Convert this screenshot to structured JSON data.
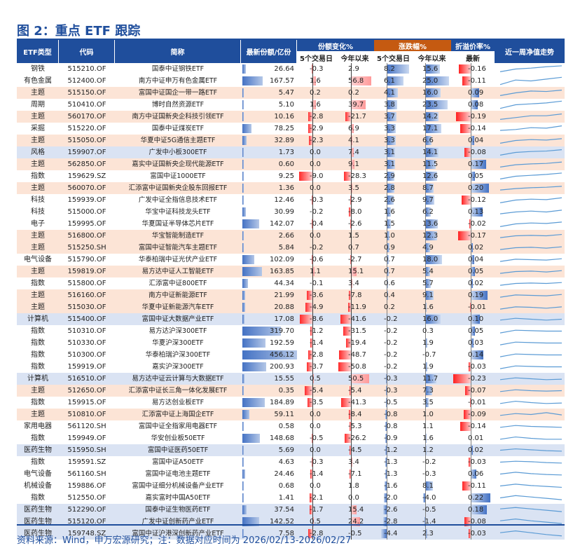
{
  "title": "图 2：重点 ETF 跟踪",
  "source": "资料来源：Wind，申万宏源研究；注：数据对应时间为 2026/02/13-2026/02/27",
  "headers": {
    "type": "ETF类型",
    "code": "代码",
    "name": "简称",
    "share": "最新份额/亿份",
    "share_change": "份额变化%",
    "price_change": "涨跌幅%",
    "premium": "折溢价率%",
    "nav_trend": "近一周净值走势",
    "sub_5d": "5个交易日",
    "sub_ytd": "今年以来",
    "sub_5d_b": "5个交易日",
    "sub_ytd_b": "今年以来",
    "sub_latest": "最新"
  },
  "colors": {
    "header_blue": "#1f4e9c",
    "header_orange": "#c55a11",
    "row_orange": "#fce4d6",
    "row_blue": "#dae3f3",
    "row_white": "#ffffff",
    "bar_red": "#ff0000",
    "bar_blue": "#4472c4",
    "spark_blue": "#5b9bd5"
  },
  "rows": [
    {
      "type": "钢铁",
      "code": "515210.OF",
      "name": "国泰中证钢铁ETF",
      "share": "26.64",
      "sc5": "-0.3",
      "scy": "2.9",
      "pc5": "8.2",
      "pcy": "15.6",
      "prem": "-0.16",
      "bg": "w",
      "spark": [
        0.2,
        0.5,
        0.6,
        0.75,
        0.85
      ]
    },
    {
      "type": "有色金属",
      "code": "512400.OF",
      "name": "南方中证申万有色金属ETF",
      "share": "167.57",
      "sc5": "1.6",
      "scy": "56.8",
      "pc5": "6.1",
      "pcy": "25.0",
      "prem": "-0.11",
      "bg": "w",
      "spark": [
        0.1,
        0.6,
        0.5,
        0.7,
        0.9
      ]
    },
    {
      "type": "主题",
      "code": "515150.OF",
      "name": "富国中证国企一带一路ETF",
      "share": "5.47",
      "sc5": "0.2",
      "scy": "0.2",
      "pc5": "4.1",
      "pcy": "16.0",
      "prem": "0.09",
      "bg": "o",
      "spark": [
        0.2,
        0.5,
        0.7,
        0.65,
        0.8
      ]
    },
    {
      "type": "周期",
      "code": "510410.OF",
      "name": "博时自然资源ETF",
      "share": "5.10",
      "sc5": "1.6",
      "scy": "39.7",
      "pc5": "3.8",
      "pcy": "23.5",
      "prem": "0.08",
      "bg": "w",
      "spark": [
        0.1,
        0.5,
        0.6,
        0.7,
        0.9
      ]
    },
    {
      "type": "主题",
      "code": "560170.OF",
      "name": "南方中证国新央企科技引领ETF",
      "share": "10.16",
      "sc5": "-2.8",
      "scy": "-21.7",
      "pc5": "3.7",
      "pcy": "14.2",
      "prem": "-0.19",
      "bg": "o",
      "spark": [
        0.2,
        0.4,
        0.6,
        0.6,
        0.8
      ]
    },
    {
      "type": "采掘",
      "code": "515220.OF",
      "name": "国泰中证煤炭ETF",
      "share": "78.25",
      "sc5": "-2.9",
      "scy": "6.9",
      "pc5": "3.3",
      "pcy": "17.1",
      "prem": "-0.14",
      "bg": "w",
      "spark": [
        0.3,
        0.4,
        0.6,
        0.55,
        0.8
      ]
    },
    {
      "type": "主题",
      "code": "515050.OF",
      "name": "华夏中证5G通信主题ETF",
      "share": "32.89",
      "sc5": "-2.3",
      "scy": "4.1",
      "pc5": "3.3",
      "pcy": "6.6",
      "prem": "0.04",
      "bg": "o",
      "spark": [
        0.2,
        0.5,
        0.6,
        0.55,
        0.7
      ]
    },
    {
      "type": "风格",
      "code": "159907.OF",
      "name": "广发中小板300ETF",
      "share": "1.73",
      "sc5": "0.0",
      "scy": "7.4",
      "pc5": "3.1",
      "pcy": "14.1",
      "prem": "-0.08",
      "bg": "b",
      "spark": [
        0.2,
        0.5,
        0.6,
        0.65,
        0.8
      ]
    },
    {
      "type": "主题",
      "code": "562850.OF",
      "name": "嘉实中证国新央企现代能源ETF",
      "share": "0.60",
      "sc5": "0.0",
      "scy": "9.1",
      "pc5": "3.1",
      "pcy": "11.5",
      "prem": "0.17",
      "bg": "o",
      "spark": [
        0.2,
        0.45,
        0.55,
        0.6,
        0.75
      ]
    },
    {
      "type": "指数",
      "code": "159629.SZ",
      "name": "富国中证1000ETF",
      "share": "9.25",
      "sc5": "-9.0",
      "scy": "-28.3",
      "pc5": "2.9",
      "pcy": "12.6",
      "prem": "0.05",
      "bg": "w",
      "spark": [
        0.2,
        0.5,
        0.6,
        0.7,
        0.85
      ]
    },
    {
      "type": "主题",
      "code": "560070.OF",
      "name": "汇添富中证国新央企股东回报ETF",
      "share": "1.36",
      "sc5": "0.0",
      "scy": "3.5",
      "pc5": "2.8",
      "pcy": "8.7",
      "prem": "0.20",
      "bg": "o",
      "spark": [
        0.3,
        0.45,
        0.55,
        0.6,
        0.7
      ]
    },
    {
      "type": "科技",
      "code": "159939.OF",
      "name": "广发中证全指信息技术ETF",
      "share": "12.46",
      "sc5": "-0.3",
      "scy": "-2.9",
      "pc5": "2.6",
      "pcy": "9.7",
      "prem": "-0.12",
      "bg": "w",
      "spark": [
        0.2,
        0.5,
        0.6,
        0.55,
        0.75
      ]
    },
    {
      "type": "科技",
      "code": "515000.OF",
      "name": "华宝中证科技龙头ETF",
      "share": "30.99",
      "sc5": "-0.2",
      "scy": "-8.0",
      "pc5": "1.6",
      "pcy": "6.2",
      "prem": "0.13",
      "bg": "w",
      "spark": [
        0.3,
        0.5,
        0.6,
        0.5,
        0.7
      ]
    },
    {
      "type": "电子",
      "code": "159995.OF",
      "name": "华夏国证半导体芯片ETF",
      "share": "142.07",
      "sc5": "-0.4",
      "scy": "-2.6",
      "pc5": "1.5",
      "pcy": "13.6",
      "prem": "-0.02",
      "bg": "w",
      "spark": [
        0.2,
        0.5,
        0.6,
        0.55,
        0.7
      ]
    },
    {
      "type": "主题",
      "code": "516800.OF",
      "name": "华宝智能制造ETF",
      "share": "2.66",
      "sc5": "0.0",
      "scy": "1.5",
      "pc5": "1.0",
      "pcy": "12.3",
      "prem": "-0.17",
      "bg": "o",
      "spark": [
        0.3,
        0.5,
        0.55,
        0.5,
        0.65
      ]
    },
    {
      "type": "主题",
      "code": "515250.SH",
      "name": "富国中证智能汽车主题ETF",
      "share": "5.84",
      "sc5": "-0.2",
      "scy": "0.7",
      "pc5": "0.9",
      "pcy": "4.9",
      "prem": "0.02",
      "bg": "o",
      "spark": [
        0.3,
        0.5,
        0.55,
        0.45,
        0.6
      ]
    },
    {
      "type": "电气设备",
      "code": "515790.OF",
      "name": "华泰柏瑞中证光伏产业ETF",
      "share": "102.09",
      "sc5": "-0.6",
      "scy": "-2.7",
      "pc5": "0.7",
      "pcy": "18.0",
      "prem": "0.04",
      "bg": "w",
      "spark": [
        0.3,
        0.55,
        0.5,
        0.45,
        0.6
      ]
    },
    {
      "type": "主题",
      "code": "159819.OF",
      "name": "易方达中证人工智能ETF",
      "share": "163.85",
      "sc5": "1.1",
      "scy": "15.1",
      "pc5": "0.7",
      "pcy": "5.4",
      "prem": "0.05",
      "bg": "o",
      "spark": [
        0.3,
        0.5,
        0.55,
        0.45,
        0.6
      ]
    },
    {
      "type": "指数",
      "code": "515800.OF",
      "name": "汇添富中证800ETF",
      "share": "44.34",
      "sc5": "-0.1",
      "scy": "3.4",
      "pc5": "0.6",
      "pcy": "5.7",
      "prem": "0.02",
      "bg": "w",
      "spark": [
        0.3,
        0.5,
        0.55,
        0.5,
        0.6
      ]
    },
    {
      "type": "主题",
      "code": "516160.OF",
      "name": "南方中证新能源ETF",
      "share": "21.99",
      "sc5": "-3.6",
      "scy": "-7.8",
      "pc5": "0.4",
      "pcy": "9.1",
      "prem": "0.19",
      "bg": "o",
      "spark": [
        0.3,
        0.55,
        0.5,
        0.45,
        0.6
      ]
    },
    {
      "type": "主题",
      "code": "515030.OF",
      "name": "华夏中证新能源汽车ETF",
      "share": "20.88",
      "sc5": "-4.9",
      "scy": "-11.9",
      "pc5": "0.2",
      "pcy": "1.6",
      "prem": "-0.01",
      "bg": "o",
      "spark": [
        0.3,
        0.55,
        0.5,
        0.4,
        0.55
      ]
    },
    {
      "type": "计算机",
      "code": "515400.OF",
      "name": "富国中证大数据产业ETF",
      "share": "17.08",
      "sc5": "-8.6",
      "scy": "-41.6",
      "pc5": "-0.2",
      "pcy": "16.0",
      "prem": "0.10",
      "bg": "b",
      "spark": [
        0.4,
        0.6,
        0.5,
        0.4,
        0.5
      ]
    },
    {
      "type": "指数",
      "code": "510310.OF",
      "name": "易方达沪深300ETF",
      "share": "319.70",
      "sc5": "-1.2",
      "scy": "-31.5",
      "pc5": "-0.2",
      "pcy": "0.3",
      "prem": "0.05",
      "bg": "w",
      "spark": [
        0.3,
        0.6,
        0.55,
        0.5,
        0.5
      ]
    },
    {
      "type": "指数",
      "code": "510330.OF",
      "name": "华夏沪深300ETF",
      "share": "192.59",
      "sc5": "-1.4",
      "scy": "-19.4",
      "pc5": "-0.2",
      "pcy": "1.9",
      "prem": "0.03",
      "bg": "w",
      "spark": [
        0.3,
        0.6,
        0.55,
        0.5,
        0.5
      ]
    },
    {
      "type": "指数",
      "code": "510300.OF",
      "name": "华泰柏瑞沪深300ETF",
      "share": "456.12",
      "sc5": "-2.8",
      "scy": "-48.7",
      "pc5": "-0.2",
      "pcy": "-0.7",
      "prem": "0.14",
      "bg": "w",
      "spark": [
        0.3,
        0.6,
        0.55,
        0.5,
        0.5
      ]
    },
    {
      "type": "指数",
      "code": "159919.OF",
      "name": "嘉实沪深300ETF",
      "share": "200.93",
      "sc5": "-3.7",
      "scy": "-50.8",
      "pc5": "-0.2",
      "pcy": "1.9",
      "prem": "-0.03",
      "bg": "w",
      "spark": [
        0.3,
        0.6,
        0.55,
        0.5,
        0.5
      ]
    },
    {
      "type": "计算机",
      "code": "516510.OF",
      "name": "易方达中证云计算与大数据ETF",
      "share": "15.55",
      "sc5": "0.5",
      "scy": "50.5",
      "pc5": "-0.3",
      "pcy": "11.7",
      "prem": "-0.23",
      "bg": "b",
      "spark": [
        0.4,
        0.6,
        0.5,
        0.4,
        0.45
      ]
    },
    {
      "type": "主题",
      "code": "512650.OF",
      "name": "汇添富中证长三角一体化发展ETF",
      "share": "0.35",
      "sc5": "-5.4",
      "scy": "-5.4",
      "pc5": "-0.3",
      "pcy": "7.3",
      "prem": "-0.07",
      "bg": "o",
      "spark": [
        0.4,
        0.6,
        0.5,
        0.45,
        0.5
      ]
    },
    {
      "type": "指数",
      "code": "159915.OF",
      "name": "易方达创业板ETF",
      "share": "184.89",
      "sc5": "-3.5",
      "scy": "-41.3",
      "pc5": "-0.5",
      "pcy": "3.5",
      "prem": "-0.01",
      "bg": "w",
      "spark": [
        0.4,
        0.65,
        0.5,
        0.4,
        0.45
      ]
    },
    {
      "type": "主题",
      "code": "510810.OF",
      "name": "汇添富中证上海国企ETF",
      "share": "59.11",
      "sc5": "0.0",
      "scy": "-8.4",
      "pc5": "-0.8",
      "pcy": "1.0",
      "prem": "-0.09",
      "bg": "o",
      "spark": [
        0.4,
        0.6,
        0.5,
        0.7,
        0.45
      ]
    },
    {
      "type": "家用电器",
      "code": "561120.SH",
      "name": "富国中证全指家用电器ETF",
      "share": "0.58",
      "sc5": "0.0",
      "scy": "-5.3",
      "pc5": "-0.8",
      "pcy": "1.1",
      "prem": "-0.14",
      "bg": "w",
      "spark": [
        0.4,
        0.6,
        0.5,
        0.45,
        0.4
      ]
    },
    {
      "type": "指数",
      "code": "159949.OF",
      "name": "华安创业板50ETF",
      "share": "148.68",
      "sc5": "-0.5",
      "scy": "-26.2",
      "pc5": "-0.9",
      "pcy": "1.6",
      "prem": "0.01",
      "bg": "w",
      "spark": [
        0.4,
        0.65,
        0.5,
        0.4,
        0.4
      ]
    },
    {
      "type": "医药生物",
      "code": "515950.SH",
      "name": "富国中证医药50ETF",
      "share": "5.69",
      "sc5": "0.0",
      "scy": "-4.5",
      "pc5": "-1.2",
      "pcy": "1.2",
      "prem": "0.02",
      "bg": "b",
      "spark": [
        0.5,
        0.65,
        0.55,
        0.45,
        0.4
      ]
    },
    {
      "type": "指数",
      "code": "159591.SZ",
      "name": "富国中证A50ETF",
      "share": "4.63",
      "sc5": "-0.3",
      "scy": "3.4",
      "pc5": "-1.3",
      "pcy": "-0.2",
      "prem": "-0.03",
      "bg": "w",
      "spark": [
        0.5,
        0.6,
        0.55,
        0.45,
        0.4
      ]
    },
    {
      "type": "电气设备",
      "code": "561160.SH",
      "name": "富国中证电池主题ETF",
      "share": "24.46",
      "sc5": "-1.4",
      "scy": "-7.1",
      "pc5": "-1.3",
      "pcy": "-0.3",
      "prem": "0.06",
      "bg": "w",
      "spark": [
        0.5,
        0.7,
        0.55,
        0.45,
        0.4
      ]
    },
    {
      "type": "机械设备",
      "code": "159886.OF",
      "name": "富国中证细分机械设备产业ETF",
      "share": "0.68",
      "sc5": "0.0",
      "scy": "1.8",
      "pc5": "-1.6",
      "pcy": "8.1",
      "prem": "-0.11",
      "bg": "w",
      "spark": [
        0.5,
        0.7,
        0.55,
        0.45,
        0.35
      ]
    },
    {
      "type": "指数",
      "code": "512550.OF",
      "name": "嘉实富时中国A50ETF",
      "share": "1.41",
      "sc5": "-2.1",
      "scy": "0.0",
      "pc5": "-2.0",
      "pcy": "-4.0",
      "prem": "0.22",
      "bg": "w",
      "spark": [
        0.5,
        0.75,
        0.6,
        0.45,
        0.3
      ]
    },
    {
      "type": "医药生物",
      "code": "512290.OF",
      "name": "国泰中证生物医药ETF",
      "share": "37.54",
      "sc5": "-1.7",
      "scy": "15.4",
      "pc5": "-2.6",
      "pcy": "-0.5",
      "prem": "0.18",
      "bg": "b",
      "spark": [
        0.6,
        0.75,
        0.6,
        0.45,
        0.3
      ]
    },
    {
      "type": "医药生物",
      "code": "515120.OF",
      "name": "广发中证创新药产业ETF",
      "share": "142.52",
      "sc5": "0.5",
      "scy": "24.2",
      "pc5": "-2.8",
      "pcy": "-1.4",
      "prem": "-0.08",
      "bg": "b",
      "spark": [
        0.6,
        0.8,
        0.6,
        0.45,
        0.3
      ]
    },
    {
      "type": "医药生物",
      "code": "159748.SZ",
      "name": "富国中证沪港深创新药产业ETF",
      "share": "7.58",
      "sc5": "-2.8",
      "scy": "-0.5",
      "pc5": "-4.4",
      "pcy": "2.3",
      "prem": "-0.03",
      "bg": "b",
      "spark": [
        0.6,
        0.8,
        0.6,
        0.4,
        0.25
      ]
    }
  ]
}
